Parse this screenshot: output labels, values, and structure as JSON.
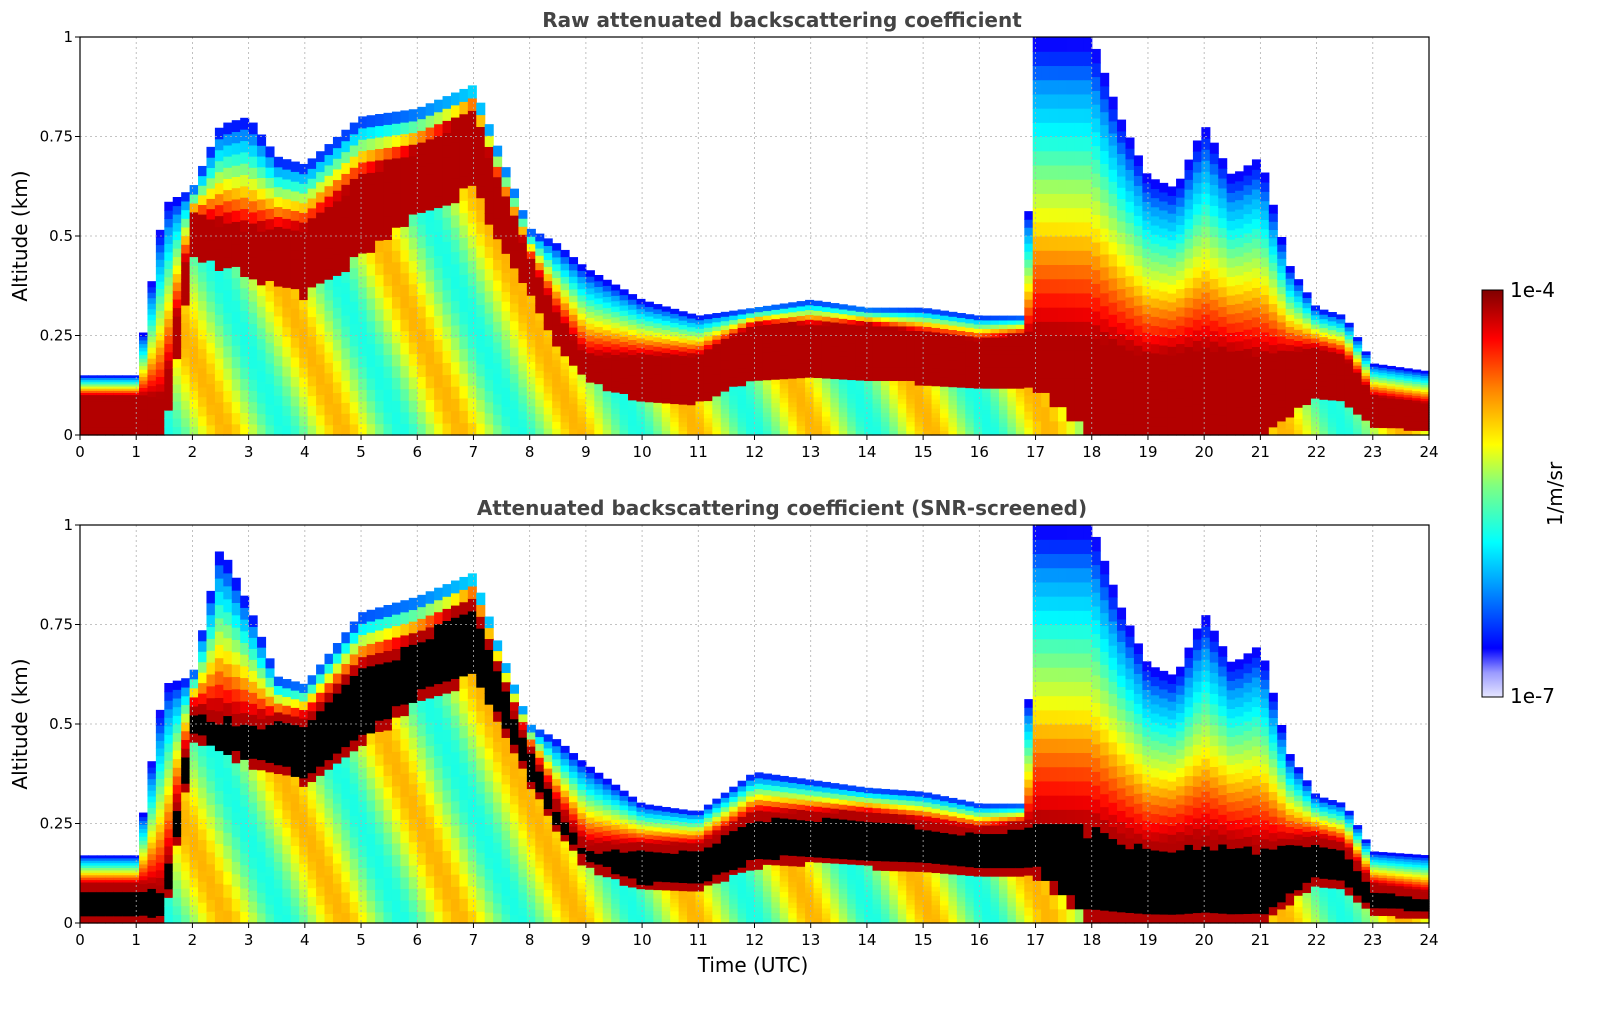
{
  "chart_data": [
    {
      "type": "heatmap",
      "title": "Raw attenuated backscattering coefficient",
      "xlabel": "",
      "ylabel": "Altitude (km)",
      "xlim": [
        0,
        24
      ],
      "ylim": [
        0,
        1
      ],
      "x_ticks": [
        "0",
        "1",
        "2",
        "3",
        "4",
        "5",
        "6",
        "7",
        "8",
        "9",
        "10",
        "11",
        "12",
        "13",
        "14",
        "15",
        "16",
        "17",
        "18",
        "19",
        "20",
        "21",
        "22",
        "23",
        "24"
      ],
      "y_ticks": [
        "0",
        "0.25",
        "0.5",
        "0.75",
        "1"
      ],
      "grid": true,
      "screened": false,
      "layer_top_km": {
        "time_utc": [
          0,
          1,
          1.5,
          2,
          2.5,
          3,
          3.5,
          4,
          5,
          6,
          7,
          7.5,
          8,
          8.5,
          9,
          10,
          11,
          12,
          13,
          14,
          15,
          16,
          16.8,
          17,
          17.5,
          18,
          18.5,
          19,
          19.5,
          20,
          20.5,
          21,
          21.5,
          22,
          22.5,
          23,
          24
        ],
        "value": [
          0.15,
          0.15,
          0.58,
          0.62,
          0.78,
          0.8,
          0.7,
          0.68,
          0.8,
          0.82,
          0.88,
          0.7,
          0.52,
          0.48,
          0.42,
          0.34,
          0.3,
          0.32,
          0.34,
          0.32,
          0.32,
          0.3,
          0.3,
          1.0,
          1.0,
          1.0,
          0.8,
          0.65,
          0.62,
          0.78,
          0.65,
          0.7,
          0.43,
          0.32,
          0.3,
          0.18,
          0.16
        ]
      },
      "dense_layer_km": {
        "time_utc": [
          0,
          1.5,
          2,
          3,
          4,
          5,
          6,
          7,
          7.5,
          8,
          8.5,
          9,
          10,
          11,
          12,
          13,
          14,
          15,
          16,
          17,
          18,
          19,
          20,
          21,
          22,
          22.5,
          23,
          24
        ],
        "base": [
          0,
          0,
          0.45,
          0.4,
          0.35,
          0.45,
          0.55,
          0.62,
          0.48,
          0.35,
          0.22,
          0.14,
          0.08,
          0.08,
          0.14,
          0.15,
          0.14,
          0.13,
          0.12,
          0.12,
          0,
          0,
          0,
          0,
          0.1,
          0.08,
          0.02,
          0.01
        ],
        "top": [
          0.1,
          0.1,
          0.55,
          0.52,
          0.52,
          0.65,
          0.72,
          0.82,
          0.62,
          0.45,
          0.3,
          0.2,
          0.2,
          0.2,
          0.28,
          0.28,
          0.28,
          0.26,
          0.24,
          0.26,
          0.25,
          0.2,
          0.22,
          0.2,
          0.22,
          0.2,
          0.1,
          0.08
        ]
      }
    },
    {
      "type": "heatmap",
      "title": "Attenuated backscattering coefficient (SNR-screened)",
      "xlabel": "Time (UTC)",
      "ylabel": "Altitude (km)",
      "xlim": [
        0,
        24
      ],
      "ylim": [
        0,
        1
      ],
      "x_ticks": [
        "0",
        "1",
        "2",
        "3",
        "4",
        "5",
        "6",
        "7",
        "8",
        "9",
        "10",
        "11",
        "12",
        "13",
        "14",
        "15",
        "16",
        "17",
        "18",
        "19",
        "20",
        "21",
        "22",
        "23",
        "24"
      ],
      "y_ticks": [
        "0",
        "0.25",
        "0.5",
        "0.75",
        "1"
      ],
      "grid": true,
      "screened": true,
      "layer_top_km": {
        "time_utc": [
          0,
          1,
          1.5,
          2,
          2.5,
          3,
          3.5,
          4,
          5,
          6,
          7,
          7.5,
          8,
          8.5,
          9,
          10,
          11,
          12,
          13,
          14,
          15,
          16,
          16.8,
          17,
          17.5,
          18,
          18.5,
          19,
          19.5,
          20,
          20.5,
          21,
          21.5,
          22,
          22.5,
          23,
          24
        ],
        "value": [
          0.17,
          0.17,
          0.6,
          0.62,
          0.95,
          0.8,
          0.62,
          0.6,
          0.78,
          0.82,
          0.88,
          0.68,
          0.5,
          0.46,
          0.4,
          0.3,
          0.28,
          0.38,
          0.36,
          0.34,
          0.33,
          0.3,
          0.3,
          1.0,
          1.0,
          1.0,
          0.8,
          0.65,
          0.62,
          0.78,
          0.65,
          0.7,
          0.43,
          0.32,
          0.3,
          0.18,
          0.17
        ]
      },
      "dense_layer_km": {
        "time_utc": [
          0,
          1.5,
          2,
          3,
          4,
          5,
          6,
          7,
          7.5,
          8,
          8.5,
          9,
          10,
          11,
          12,
          13,
          14,
          15,
          16,
          17,
          18,
          19,
          20,
          21,
          22,
          22.5,
          23,
          24
        ],
        "base": [
          0,
          0,
          0.45,
          0.4,
          0.35,
          0.45,
          0.55,
          0.62,
          0.48,
          0.35,
          0.22,
          0.14,
          0.08,
          0.08,
          0.14,
          0.15,
          0.14,
          0.13,
          0.12,
          0.12,
          0,
          0,
          0,
          0,
          0.1,
          0.08,
          0.02,
          0.01
        ],
        "top": [
          0.1,
          0.1,
          0.55,
          0.52,
          0.52,
          0.65,
          0.72,
          0.82,
          0.62,
          0.45,
          0.3,
          0.2,
          0.2,
          0.2,
          0.28,
          0.28,
          0.28,
          0.26,
          0.24,
          0.26,
          0.25,
          0.2,
          0.22,
          0.2,
          0.22,
          0.2,
          0.1,
          0.08
        ]
      }
    }
  ],
  "colorbar": {
    "label": "1/m/sr",
    "max_label": "1e-4",
    "min_label": "1e-7",
    "range": [
      1e-07,
      0.0001
    ],
    "scale": "log",
    "colormap": [
      "#e6e6ff",
      "#0000ff",
      "#00a0ff",
      "#00ffff",
      "#80ff80",
      "#ffff00",
      "#ff8000",
      "#ff0000",
      "#800000"
    ]
  },
  "colors": {
    "title": "#444444",
    "grid": "#b0b0b0",
    "saturated_screened": "#000000"
  }
}
